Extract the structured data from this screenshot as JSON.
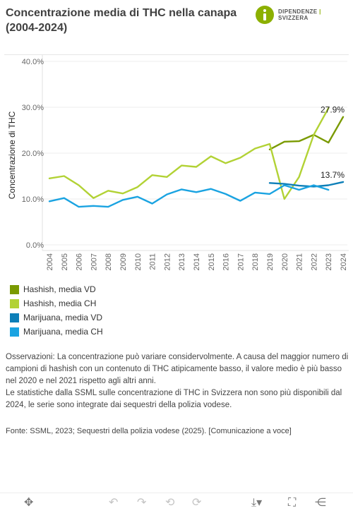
{
  "header": {
    "title_line1": "Concentrazione media di THC nella canapa",
    "title_line2": "(2004-2024)",
    "logo_left": "DIPENDENZE",
    "logo_sep": "|",
    "logo_right": "SVIZZERA",
    "logo_color": "#8cb000"
  },
  "chart_data": {
    "type": "line",
    "x": [
      2004,
      2005,
      2006,
      2007,
      2008,
      2009,
      2010,
      2011,
      2012,
      2013,
      2014,
      2015,
      2016,
      2017,
      2018,
      2019,
      2020,
      2021,
      2022,
      2023,
      2024
    ],
    "ylabel": "Concentrazione di THC",
    "ylim": [
      0,
      40
    ],
    "yticks": [
      "0.0%",
      "10.0%",
      "20.0%",
      "30.0%",
      "40.0%"
    ],
    "grid": true,
    "series": [
      {
        "name": "Hashish, media VD",
        "color": "#7a9a01",
        "points": [
          [
            2019,
            20.8
          ],
          [
            2020,
            22.5
          ],
          [
            2021,
            22.6
          ],
          [
            2022,
            24.0
          ],
          [
            2023,
            22.3
          ],
          [
            2024,
            27.9
          ]
        ]
      },
      {
        "name": "Hashish, media CH",
        "color": "#b2d235",
        "points": [
          [
            2004,
            14.5
          ],
          [
            2005,
            15.0
          ],
          [
            2006,
            13.0
          ],
          [
            2007,
            10.2
          ],
          [
            2008,
            11.8
          ],
          [
            2009,
            11.2
          ],
          [
            2010,
            12.6
          ],
          [
            2011,
            15.2
          ],
          [
            2012,
            14.8
          ],
          [
            2013,
            17.3
          ],
          [
            2014,
            17.0
          ],
          [
            2015,
            19.3
          ],
          [
            2016,
            17.8
          ],
          [
            2017,
            19.0
          ],
          [
            2018,
            21.0
          ],
          [
            2019,
            22.0
          ],
          [
            2020,
            10.0
          ],
          [
            2021,
            14.8
          ],
          [
            2022,
            24.0
          ],
          [
            2023,
            29.8
          ]
        ]
      },
      {
        "name": "Marijuana, media VD",
        "color": "#0d7fb8",
        "points": [
          [
            2019,
            13.5
          ],
          [
            2020,
            13.3
          ],
          [
            2021,
            12.9
          ],
          [
            2022,
            12.7
          ],
          [
            2023,
            13.0
          ],
          [
            2024,
            13.7
          ]
        ]
      },
      {
        "name": "Marijuana, media CH",
        "color": "#1aa3e1",
        "points": [
          [
            2004,
            9.5
          ],
          [
            2005,
            10.2
          ],
          [
            2006,
            8.3
          ],
          [
            2007,
            8.5
          ],
          [
            2008,
            8.3
          ],
          [
            2009,
            9.8
          ],
          [
            2010,
            10.5
          ],
          [
            2011,
            9.0
          ],
          [
            2012,
            11.0
          ],
          [
            2013,
            12.1
          ],
          [
            2014,
            11.5
          ],
          [
            2015,
            12.2
          ],
          [
            2016,
            11.1
          ],
          [
            2017,
            9.6
          ],
          [
            2018,
            11.4
          ],
          [
            2019,
            11.1
          ],
          [
            2020,
            13.0
          ],
          [
            2021,
            12.0
          ],
          [
            2022,
            13.0
          ],
          [
            2023,
            12.0
          ]
        ]
      }
    ],
    "annotations": [
      {
        "text": "27.9%",
        "x": 2024,
        "y": 27.9
      },
      {
        "text": "13.7%",
        "x": 2024,
        "y": 13.7
      }
    ]
  },
  "notes": {
    "p1": "Osservazioni: La concentrazione può variare considervolmente. A causa del maggior numero di campioni di hashish con un contenuto di THC atipicamente basso, il valore medio è più basso nel 2020 e nel 2021 rispetto agli altri anni.",
    "p2": "Le statistiche dalla SSML sulle concentrazione di THC in Svizzera non sono più disponibili dal 2024, le serie sono integrate dai sequestri della polizia vodese."
  },
  "source": "Fonte: SSML, 2023; Sequestri della polizia vodese (2025). [Comunicazione a voce]",
  "toolbar": {
    "move": "✥",
    "undo": "↶",
    "redo": "↷",
    "undo_all": "⟲",
    "redo_all": "⟳",
    "download": "⤓▾",
    "fullscreen": "⛶",
    "share": "⋲"
  }
}
